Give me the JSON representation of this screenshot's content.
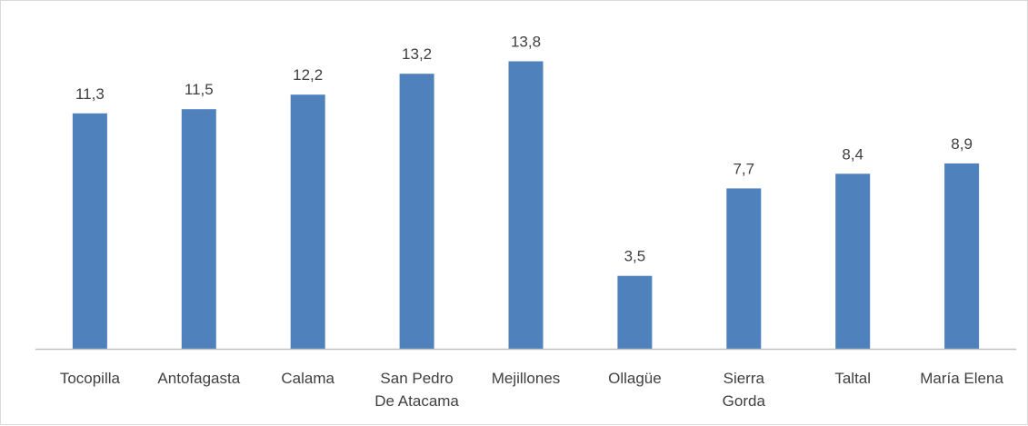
{
  "chart_data": {
    "type": "bar",
    "categories": [
      [
        "Tocopilla"
      ],
      [
        "Antofagasta"
      ],
      [
        "Calama"
      ],
      [
        "San Pedro",
        "De Atacama"
      ],
      [
        "Mejillones"
      ],
      [
        "Ollagüe"
      ],
      [
        "Sierra",
        "Gorda"
      ],
      [
        "Taltal"
      ],
      [
        "María Elena"
      ]
    ],
    "values": [
      11.3,
      11.5,
      12.2,
      13.2,
      13.8,
      3.5,
      7.7,
      8.4,
      8.9
    ],
    "value_labels": [
      "11,3",
      "11,5",
      "12,2",
      "13,2",
      "13,8",
      "3,5",
      "7,7",
      "8,4",
      "8,9"
    ],
    "title": "",
    "xlabel": "",
    "ylabel": "",
    "ylim": [
      0,
      16
    ],
    "grid": false,
    "legend": "none",
    "bar_color": "#4f81bd",
    "axis_color": "#bfbfbf",
    "text_color": "#404040"
  }
}
